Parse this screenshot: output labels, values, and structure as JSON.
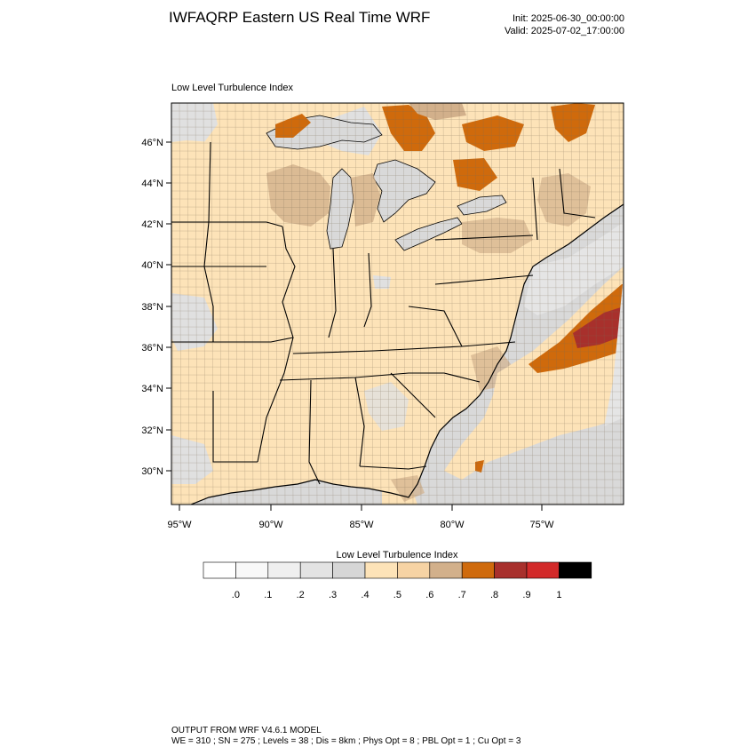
{
  "header": {
    "title": "IWFAQRP Eastern US Real Time WRF",
    "init": "Init: 2025-06-30_00:00:00",
    "valid": "Valid: 2025-07-02_17:00:00"
  },
  "panel_title": "Low Level Turbulence Index",
  "map": {
    "lat_ticks": [
      "46°N",
      "44°N",
      "42°N",
      "40°N",
      "38°N",
      "36°N",
      "34°N",
      "32°N",
      "30°N"
    ],
    "lon_ticks": [
      "95°W",
      "90°W",
      "85°W",
      "80°W",
      "75°W"
    ],
    "colors": {
      "land_base": "#fde3b8",
      "land_mid": "#f7d3a4",
      "land_high": "#d2b08b",
      "orange": "#cf6a0c",
      "dark_red": "#a8302c",
      "water": "#d9d9d9",
      "light_gray": "#e5e5e5",
      "lake": "#d9d9d9"
    }
  },
  "colorbar": {
    "title": "Low Level Turbulence Index",
    "labels": [
      ".0",
      ".1",
      ".2",
      ".3",
      ".4",
      ".5",
      ".6",
      ".7",
      ".8",
      ".9",
      "1"
    ],
    "colors": [
      "#ffffff",
      "#f8f8f8",
      "#efefef",
      "#e3e3e3",
      "#d6d6d6",
      "#fde3b8",
      "#f6d3a4",
      "#d2b08b",
      "#cf6a0c",
      "#a8302c",
      "#d22a2a",
      "#000000"
    ]
  },
  "footer": {
    "line1": "OUTPUT FROM WRF V4.6.1 MODEL",
    "line2": "WE = 310 ; SN = 275 ; Levels = 38 ; Dis = 8km ; Phys Opt = 8 ; PBL Opt = 1 ; Cu Opt = 3"
  }
}
